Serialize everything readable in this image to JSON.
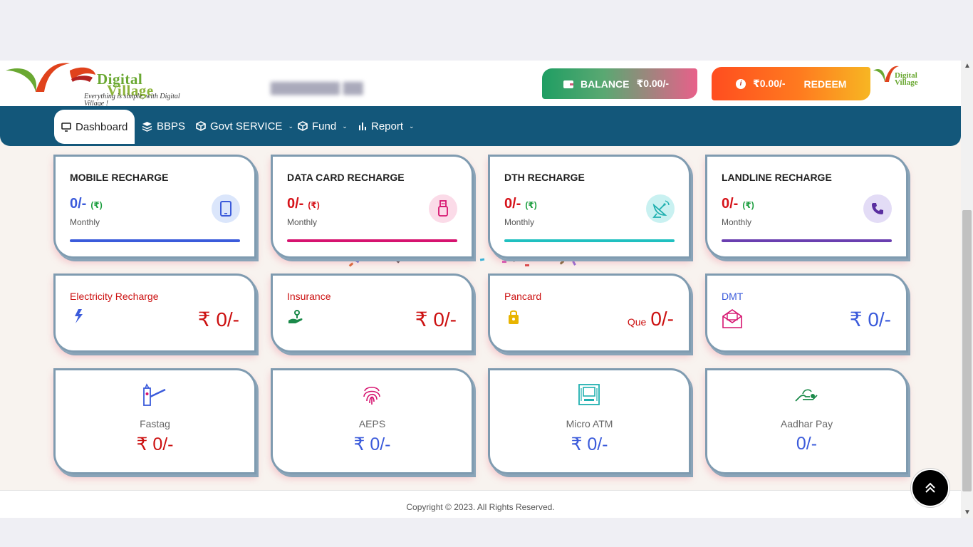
{
  "header": {
    "logo_line1": "Digital",
    "logo_line2": "Village",
    "logo_tagline": "Everything is simple, with Digital Village !",
    "balance_label": "BALANCE",
    "balance_value": "₹0.00/-",
    "points_value": "₹0.00/-",
    "redeem_label": "REDEEM"
  },
  "nav": [
    {
      "label": "Dashboard",
      "icon": "monitor-icon",
      "active": true
    },
    {
      "label": "BBPS",
      "icon": "layers-icon"
    },
    {
      "label": "Govt SERVICE",
      "icon": "cube-icon",
      "dropdown": true
    },
    {
      "label": "Fund",
      "icon": "cube-icon",
      "dropdown": true
    },
    {
      "label": "Report",
      "icon": "bar-chart-icon",
      "dropdown": true
    }
  ],
  "recharge_cards": [
    {
      "title": "MOBILE RECHARGE",
      "amount": "0/-",
      "currency": "(₹)",
      "period": "Monthly",
      "icon": "smartphone-icon",
      "color": "#3b5bdb"
    },
    {
      "title": "DATA CARD RECHARGE",
      "amount": "0/-",
      "currency": "(₹)",
      "period": "Monthly",
      "icon": "usb-stick-icon",
      "color": "#d6136f"
    },
    {
      "title": "DTH RECHARGE",
      "amount": "0/-",
      "currency": "(₹)",
      "period": "Monthly",
      "icon": "satellite-dish-icon",
      "color": "#20c0c0"
    },
    {
      "title": "LANDLINE RECHARGE",
      "amount": "0/-",
      "currency": "(₹)",
      "period": "Monthly",
      "icon": "phone-icon",
      "color": "#6a3fb0"
    }
  ],
  "service_cards": [
    {
      "title": "Electricity Recharge",
      "amount": "₹ 0/-",
      "icon": "lightning-icon",
      "color": "#cc1111"
    },
    {
      "title": "Insurance",
      "amount": "₹ 0/-",
      "icon": "hand-plant-icon",
      "color": "#cc1111"
    },
    {
      "title": "Pancard",
      "prefix": "Que",
      "amount": "0/-",
      "icon": "lock-icon",
      "color": "#cc1111"
    },
    {
      "title": "DMT",
      "amount": "₹ 0/-",
      "icon": "envelope-icon",
      "color": "#3b5bdb"
    }
  ],
  "payment_cards": [
    {
      "label": "Fastag",
      "amount": "₹ 0/-",
      "icon": "toll-gate-icon",
      "color": "#cc1111"
    },
    {
      "label": "AEPS",
      "amount": "₹ 0/-",
      "icon": "fingerprint-icon",
      "color": "#3b5bdb"
    },
    {
      "label": "Micro ATM",
      "amount": "₹ 0/-",
      "icon": "atm-icon",
      "color": "#3b5bdb"
    },
    {
      "label": "Aadhar Pay",
      "amount": "0/-",
      "icon": "hand-pay-icon",
      "color": "#3b5bdb"
    }
  ],
  "footer": {
    "copyright": "Copyright © 2023. All Rights Reserved."
  }
}
